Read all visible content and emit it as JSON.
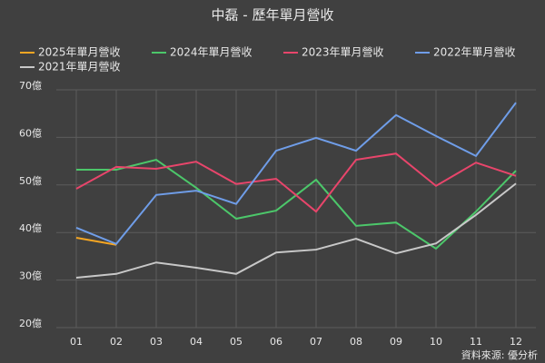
{
  "chart_data": {
    "type": "line",
    "title": "中磊 - 歷年單月營收",
    "categories": [
      "01",
      "02",
      "03",
      "04",
      "05",
      "06",
      "07",
      "08",
      "09",
      "10",
      "11",
      "12"
    ],
    "series": [
      {
        "name": "2025年單月營收",
        "color": "#f5a623",
        "values": [
          38.9,
          37.4,
          null,
          null,
          null,
          null,
          null,
          null,
          null,
          null,
          null,
          null
        ]
      },
      {
        "name": "2024年單月營收",
        "color": "#4cc76a",
        "values": [
          53.2,
          53.2,
          55.3,
          49.4,
          42.9,
          44.6,
          51.1,
          41.4,
          42.1,
          36.6,
          44.4,
          53.0
        ]
      },
      {
        "name": "2023年單月營收",
        "color": "#e8456b",
        "values": [
          49.2,
          53.8,
          53.4,
          54.9,
          50.2,
          51.3,
          44.4,
          55.3,
          56.6,
          49.8,
          54.7,
          51.9
        ]
      },
      {
        "name": "2022年單月營收",
        "color": "#6f9de8",
        "values": [
          41.0,
          37.6,
          47.9,
          48.8,
          46.0,
          57.2,
          59.9,
          57.2,
          64.7,
          60.3,
          56.1,
          67.3
        ]
      },
      {
        "name": "2021年單月營收",
        "color": "#c8c8c8",
        "values": [
          30.5,
          31.3,
          33.7,
          32.6,
          31.3,
          35.8,
          36.4,
          38.7,
          35.6,
          37.7,
          43.7,
          50.3
        ]
      }
    ],
    "ylim": [
      20,
      70
    ],
    "yticks": [
      {
        "value": 20,
        "label": "20億"
      },
      {
        "value": 30,
        "label": "30億"
      },
      {
        "value": 40,
        "label": "40億"
      },
      {
        "value": 50,
        "label": "50億"
      },
      {
        "value": 60,
        "label": "60億"
      },
      {
        "value": 70,
        "label": "70億"
      }
    ],
    "grid": true,
    "source": "資料來源: 優分析"
  }
}
